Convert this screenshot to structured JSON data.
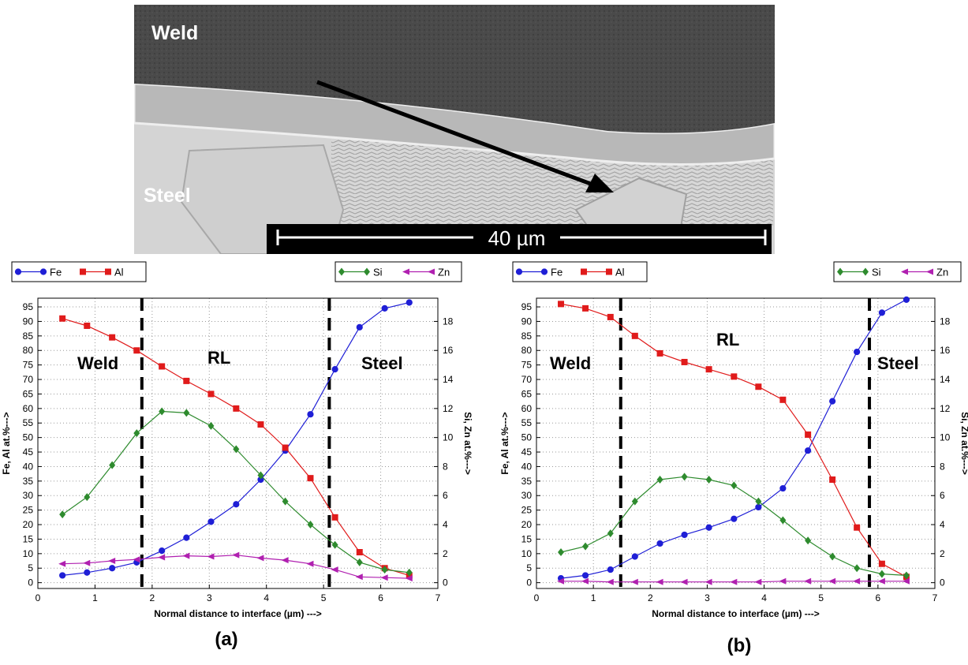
{
  "micrograph": {
    "label_weld": "Weld",
    "label_steel": "Steel",
    "scale_label": "40 µm"
  },
  "chart_data": [
    {
      "type": "line",
      "panel_label": "(a)",
      "xlabel": "Normal distance to interface (µm) --->",
      "ylabel": "Fe, Al at.%--->",
      "y2label": "Si, Zn at.%--->",
      "xlim": [
        0,
        7
      ],
      "ylim": [
        -2,
        98
      ],
      "y2lim": [
        -0.4,
        19.6
      ],
      "xticks": [
        0,
        1,
        2,
        3,
        4,
        5,
        6,
        7
      ],
      "yticks": [
        0,
        5,
        10,
        15,
        20,
        25,
        30,
        35,
        40,
        45,
        50,
        55,
        60,
        65,
        70,
        75,
        80,
        85,
        90,
        95
      ],
      "y2ticks": [
        0,
        2,
        4,
        6,
        8,
        10,
        12,
        14,
        16,
        18
      ],
      "grid": true,
      "region_labels": [
        "Weld",
        "RL",
        "Steel"
      ],
      "interface_lines_x": [
        1.82,
        5.1
      ],
      "legend_left": [
        "Fe",
        "Al"
      ],
      "legend_right": [
        "Si",
        "Zn"
      ],
      "x": [
        0.43,
        0.86,
        1.3,
        1.73,
        2.17,
        2.6,
        3.03,
        3.47,
        3.9,
        4.33,
        4.77,
        5.2,
        5.63,
        6.07,
        6.5
      ],
      "series": [
        {
          "name": "Fe",
          "axis": "left",
          "color": "#1f1fd6",
          "marker": "circle",
          "values": [
            2.5,
            3.5,
            5,
            7,
            11,
            15.5,
            21,
            27,
            35.5,
            45.5,
            58,
            73.5,
            88,
            94.5,
            96.5
          ]
        },
        {
          "name": "Al",
          "axis": "left",
          "color": "#e01b1b",
          "marker": "square",
          "values": [
            91,
            88.5,
            84.5,
            80,
            74.5,
            69.5,
            65,
            60,
            54.5,
            46.5,
            36,
            22.5,
            10.5,
            5,
            2.5
          ]
        },
        {
          "name": "Si",
          "axis": "right",
          "color": "#2e8b2e",
          "marker": "diamond",
          "values": [
            4.7,
            5.9,
            8.1,
            10.3,
            11.8,
            11.7,
            10.8,
            9.2,
            7.4,
            5.6,
            4.0,
            2.6,
            1.4,
            0.9,
            0.7
          ]
        },
        {
          "name": "Zn",
          "axis": "right",
          "color": "#b020b0",
          "marker": "triangle-left",
          "values": [
            1.3,
            1.35,
            1.5,
            1.6,
            1.75,
            1.85,
            1.8,
            1.9,
            1.7,
            1.55,
            1.3,
            0.9,
            0.4,
            0.35,
            0.3
          ]
        }
      ]
    },
    {
      "type": "line",
      "panel_label": "(b)",
      "xlabel": "Normal distance to interface (µm) --->",
      "ylabel": "Fe, Al at.%--->",
      "y2label": "Si, Zn at.%--->",
      "xlim": [
        0,
        7
      ],
      "ylim": [
        -2,
        98
      ],
      "y2lim": [
        -0.4,
        19.6
      ],
      "xticks": [
        0,
        1,
        2,
        3,
        4,
        5,
        6,
        7
      ],
      "yticks": [
        0,
        5,
        10,
        15,
        20,
        25,
        30,
        35,
        40,
        45,
        50,
        55,
        60,
        65,
        70,
        75,
        80,
        85,
        90,
        95
      ],
      "y2ticks": [
        0,
        2,
        4,
        6,
        8,
        10,
        12,
        14,
        16,
        18
      ],
      "grid": true,
      "region_labels": [
        "Weld",
        "RL",
        "Steel"
      ],
      "interface_lines_x": [
        1.48,
        5.85
      ],
      "legend_left": [
        "Fe",
        "Al"
      ],
      "legend_right": [
        "Si",
        "Zn"
      ],
      "x": [
        0.43,
        0.86,
        1.3,
        1.73,
        2.17,
        2.6,
        3.03,
        3.47,
        3.9,
        4.33,
        4.77,
        5.2,
        5.63,
        6.07,
        6.5
      ],
      "series": [
        {
          "name": "Fe",
          "axis": "left",
          "color": "#1f1fd6",
          "marker": "circle",
          "values": [
            1.5,
            2.5,
            4.5,
            9,
            13.5,
            16.5,
            19,
            22,
            26,
            32.5,
            45.5,
            62.5,
            79.5,
            93,
            97.5
          ]
        },
        {
          "name": "Al",
          "axis": "left",
          "color": "#e01b1b",
          "marker": "square",
          "values": [
            96,
            94.5,
            91.5,
            85,
            79,
            76,
            73.5,
            71,
            67.5,
            63,
            51,
            35.5,
            19,
            6.5,
            2
          ]
        },
        {
          "name": "Si",
          "axis": "right",
          "color": "#2e8b2e",
          "marker": "diamond",
          "values": [
            2.1,
            2.5,
            3.4,
            5.6,
            7.1,
            7.3,
            7.1,
            6.7,
            5.6,
            4.3,
            2.9,
            1.8,
            1.0,
            0.6,
            0.5
          ]
        },
        {
          "name": "Zn",
          "axis": "right",
          "color": "#b020b0",
          "marker": "triangle-left",
          "values": [
            0.1,
            0.1,
            0.05,
            0.05,
            0.05,
            0.05,
            0.05,
            0.05,
            0.05,
            0.1,
            0.1,
            0.1,
            0.1,
            0.1,
            0.1
          ]
        }
      ]
    }
  ]
}
